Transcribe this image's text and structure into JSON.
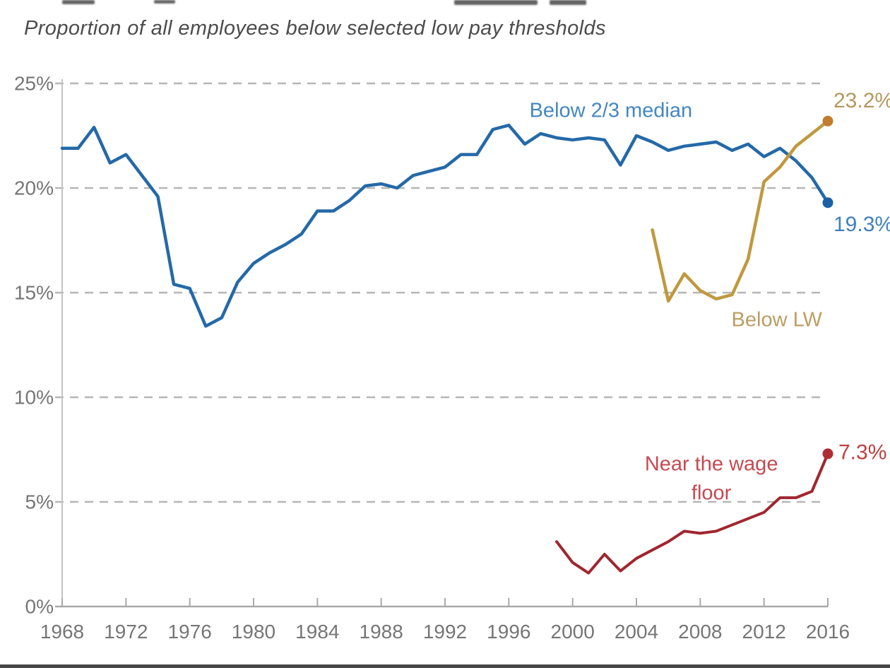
{
  "title": "Proportion of all employees below selected low pay thresholds",
  "chart_data": {
    "type": "line",
    "title": "Proportion of all employees below selected low pay thresholds",
    "xlabel": "",
    "ylabel": "",
    "x_range": [
      1968,
      2016
    ],
    "y_range": [
      0,
      25
    ],
    "grid": "horizontal-dashed",
    "legend_position": "inline-labels",
    "background": "#ffffff",
    "axis_color": "#a9a9a9",
    "y_axis_color": "#c3c3c3",
    "grid_color": "#b6b6b6",
    "tick_label_color": "#767676",
    "x_ticks": [
      1968,
      1972,
      1976,
      1980,
      1984,
      1988,
      1992,
      1996,
      2000,
      2004,
      2008,
      2012,
      2016
    ],
    "y_ticks": [
      {
        "value": 0,
        "label": "0%"
      },
      {
        "value": 5,
        "label": "5%"
      },
      {
        "value": 10,
        "label": "10%"
      },
      {
        "value": 15,
        "label": "15%"
      },
      {
        "value": 20,
        "label": "20%"
      },
      {
        "value": 25,
        "label": "25%"
      }
    ],
    "series": [
      {
        "name": "Below 2/3 median",
        "id": "below-2-3-median",
        "color": "#2469a8",
        "dot_color": "#1b5fa6",
        "label_color": "#4486c2",
        "end_label_color": "#4080be",
        "line_width": 4.5,
        "start_year": 1968,
        "end_value_label": "19.3%",
        "end_label_offset": [
          8,
          31
        ],
        "name_label": {
          "text_lines": [
            "Below 2/3 median"
          ],
          "anchor_year": 2002.4,
          "anchor_value": 23.7
        },
        "values": [
          21.9,
          21.9,
          22.9,
          21.2,
          21.6,
          20.6,
          19.6,
          15.4,
          15.2,
          13.4,
          13.8,
          15.5,
          16.4,
          16.9,
          17.3,
          17.8,
          18.9,
          18.9,
          19.4,
          20.1,
          20.2,
          20.0,
          20.6,
          20.8,
          21.0,
          21.6,
          21.6,
          22.8,
          23.0,
          22.1,
          22.6,
          22.4,
          22.3,
          22.4,
          22.3,
          21.1,
          22.5,
          22.2,
          21.8,
          22.0,
          22.1,
          22.2,
          21.8,
          22.1,
          21.5,
          21.9,
          21.3,
          20.5,
          19.3
        ]
      },
      {
        "name": "Below LW",
        "id": "below-lw",
        "color": "#c1983f",
        "dot_color": "#c17c2d",
        "label_color": "#bd9d62",
        "end_label_color": "#b5985e",
        "line_width": 4.5,
        "start_year": 2005,
        "end_value_label": "23.2%",
        "end_label_offset": [
          8,
          -29
        ],
        "name_label": {
          "text_lines": [
            "Below LW"
          ],
          "anchor_year": 2012.8,
          "anchor_value": 13.7
        },
        "values": [
          18.0,
          14.6,
          15.9,
          15.1,
          14.7,
          14.9,
          16.6,
          20.3,
          21.0,
          22.0,
          22.6,
          23.2
        ]
      },
      {
        "name": "Near the wage floor",
        "id": "near-the-wage-floor",
        "color": "#a0262e",
        "dot_color": "#b02c35",
        "label_color": "#c44a50",
        "end_label_color": "#c0403f",
        "line_width": 4,
        "start_year": 1999,
        "end_value_label": "7.3%",
        "end_label_offset": [
          15,
          -2
        ],
        "name_label": {
          "text_lines": [
            "Near the wage",
            "floor"
          ],
          "anchor_year": 2008.7,
          "anchor_value": 6.8
        },
        "values": [
          3.1,
          2.1,
          1.6,
          2.5,
          1.7,
          2.3,
          2.7,
          3.1,
          3.6,
          3.5,
          3.6,
          3.9,
          4.2,
          4.5,
          5.2,
          5.2,
          5.5,
          7.3
        ]
      }
    ]
  }
}
